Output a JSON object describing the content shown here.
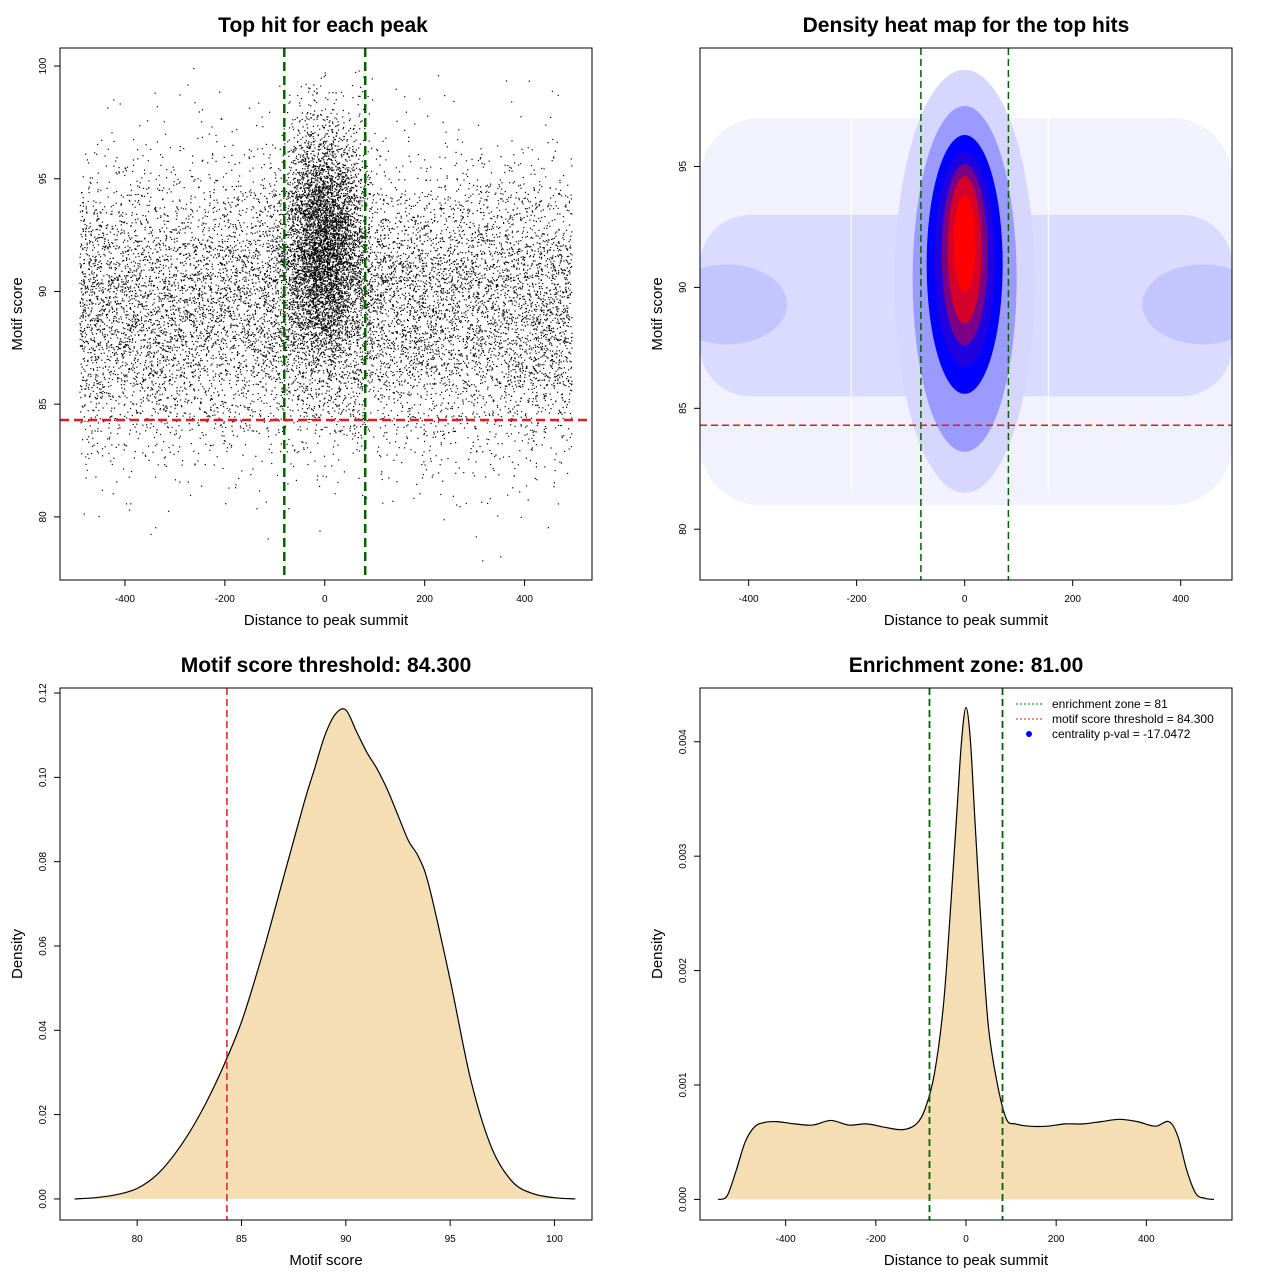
{
  "chart_data": [
    {
      "type": "scatter",
      "title": "Top hit for each peak",
      "xlabel": "Distance to peak summit",
      "ylabel": "Motif score",
      "xlim": [
        -530,
        535
      ],
      "ylim": [
        77.2,
        100.8
      ],
      "xticks": [
        -400,
        -200,
        0,
        200,
        400
      ],
      "yticks": [
        80,
        85,
        90,
        95,
        100
      ],
      "n_points": 16000,
      "point_color": "#000000",
      "enrichment_zone": [
        -81,
        81
      ],
      "zone_line_color": "#006400",
      "threshold": 84.3,
      "threshold_line_color": "#e41a1c",
      "grid": false
    },
    {
      "type": "heatmap",
      "title": "Density heat map for the top hits",
      "xlabel": "Distance to peak summit",
      "ylabel": "Motif score",
      "xlim": [
        -490,
        495
      ],
      "ylim": [
        77.9,
        99.9
      ],
      "xticks": [
        -400,
        -200,
        0,
        200,
        400
      ],
      "yticks": [
        80,
        85,
        90,
        95
      ],
      "colorscale": [
        "#ffffff",
        "#8c8cff",
        "#0000ff",
        "#ff0000"
      ],
      "peak_center": [
        0,
        92
      ],
      "enrichment_zone": [
        -81,
        81
      ],
      "zone_line_color": "#006400",
      "threshold": 84.3,
      "threshold_line_color": "#e41a1c",
      "grid": false
    },
    {
      "type": "area",
      "title": "Motif score threshold: 84.300",
      "xlabel": "Motif score",
      "ylabel": "Density",
      "xlim": [
        76.3,
        101.8
      ],
      "ylim": [
        -0.005,
        0.1212
      ],
      "xticks": [
        80,
        85,
        90,
        95,
        100
      ],
      "yticks": [
        0.0,
        0.02,
        0.04,
        0.06,
        0.08,
        0.1,
        0.12
      ],
      "ytick_labels": [
        "0.00",
        "0.02",
        "0.04",
        "0.06",
        "0.08",
        "0.10",
        "0.12"
      ],
      "x": [
        77,
        78,
        79,
        80,
        81,
        82,
        83,
        84,
        85,
        86,
        87,
        88,
        88.5,
        89,
        89.5,
        90,
        90.5,
        91,
        91.5,
        92,
        92.5,
        93,
        93.5,
        94,
        95,
        96,
        97,
        98,
        99,
        100,
        101
      ],
      "values": [
        0.0,
        0.0003,
        0.001,
        0.0025,
        0.006,
        0.012,
        0.02,
        0.03,
        0.042,
        0.058,
        0.076,
        0.094,
        0.102,
        0.11,
        0.115,
        0.116,
        0.111,
        0.106,
        0.102,
        0.097,
        0.091,
        0.085,
        0.081,
        0.074,
        0.052,
        0.028,
        0.012,
        0.004,
        0.0012,
        0.0003,
        0.0
      ],
      "fill_color": "#f5deb3",
      "threshold": 84.3,
      "threshold_line_color": "#e41a1c",
      "grid": false
    },
    {
      "type": "area",
      "title": "Enrichment zone: 81.00",
      "xlabel": "Distance to peak summit",
      "ylabel": "Density",
      "xlim": [
        -590,
        590
      ],
      "ylim": [
        -0.00018,
        0.00447
      ],
      "xticks": [
        -400,
        -200,
        0,
        200,
        400
      ],
      "yticks": [
        0.0,
        0.001,
        0.002,
        0.003,
        0.004
      ],
      "ytick_labels": [
        "0.000",
        "0.001",
        "0.002",
        "0.003",
        "0.004"
      ],
      "x": [
        -550,
        -530,
        -510,
        -490,
        -470,
        -450,
        -420,
        -380,
        -340,
        -300,
        -260,
        -220,
        -180,
        -140,
        -110,
        -90,
        -70,
        -50,
        -35,
        -20,
        -10,
        0,
        10,
        20,
        35,
        50,
        70,
        90,
        110,
        140,
        180,
        220,
        260,
        300,
        340,
        380,
        420,
        450,
        470,
        490,
        510,
        530,
        550
      ],
      "values": [
        0.0,
        3e-05,
        0.00025,
        0.0005,
        0.00063,
        0.00067,
        0.00068,
        0.00066,
        0.00065,
        0.00069,
        0.00065,
        0.00066,
        0.00063,
        0.00061,
        0.00066,
        0.0008,
        0.0011,
        0.0017,
        0.0025,
        0.0034,
        0.004,
        0.0043,
        0.004,
        0.0033,
        0.0023,
        0.0015,
        0.001,
        0.0007,
        0.00066,
        0.00064,
        0.00064,
        0.00066,
        0.00066,
        0.00068,
        0.0007,
        0.00068,
        0.00064,
        0.00068,
        0.00055,
        0.00025,
        5e-05,
        1e-05,
        0.0
      ],
      "fill_color": "#f5deb3",
      "enrichment_zone": [
        -81,
        81
      ],
      "zone_line_color": "#006400",
      "legend": {
        "position": "top-right",
        "entries": [
          {
            "label": "enrichment zone = 81",
            "color": "#006400",
            "style": "dotted-line"
          },
          {
            "label": "motif score threshold = 84.300",
            "color": "#e41a1c",
            "style": "dotted-line"
          },
          {
            "label": "centrality p-val = -17.0472",
            "color": "#0000ff",
            "style": "point"
          }
        ]
      },
      "grid": false
    }
  ]
}
